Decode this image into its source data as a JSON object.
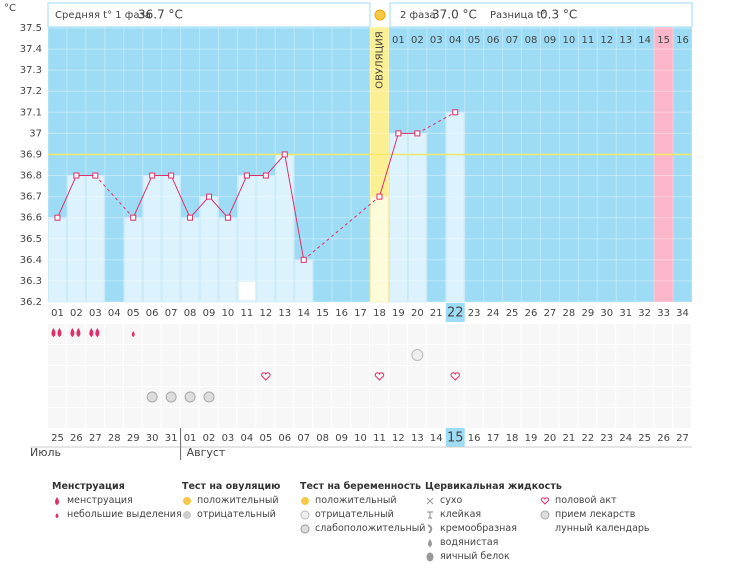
{
  "chart_data": {
    "type": "line",
    "y_label": "°C",
    "header": {
      "phase1_label": "Средняя t° 1 фаза",
      "phase1_value": "36.7 °C",
      "phase2_label": "2 фаза",
      "phase2_value": "37.0 °C",
      "diff_label": "Разница t°",
      "diff_value": "0.3 °C"
    },
    "ovulation_label": "ОВУЛЯЦИЯ",
    "categories": [
      "01",
      "02",
      "03",
      "04",
      "05",
      "06",
      "07",
      "08",
      "09",
      "10",
      "11",
      "12",
      "13",
      "14",
      "15",
      "16",
      "17",
      "18",
      "19",
      "20",
      "21",
      "22",
      "23",
      "24",
      "25",
      "26",
      "27",
      "28",
      "29",
      "30",
      "31",
      "32",
      "33",
      "34"
    ],
    "phase2_days": [
      null,
      null,
      null,
      null,
      null,
      null,
      null,
      null,
      null,
      null,
      null,
      null,
      null,
      null,
      null,
      null,
      null,
      null,
      "01",
      "02",
      "03",
      "04",
      "05",
      "06",
      "07",
      "08",
      "09",
      "10",
      "11",
      "12",
      "13",
      "14",
      "15",
      "16"
    ],
    "dates": [
      "25",
      "26",
      "27",
      "28",
      "29",
      "30",
      "31",
      "01",
      "02",
      "03",
      "04",
      "05",
      "06",
      "07",
      "08",
      "09",
      "10",
      "11",
      "12",
      "13",
      "14",
      "15",
      "16",
      "17",
      "18",
      "19",
      "20",
      "21",
      "22",
      "23",
      "24",
      "25",
      "26",
      "27"
    ],
    "months": [
      {
        "label": "Июль",
        "start": 0
      },
      {
        "label": "Август",
        "start": 7
      }
    ],
    "weekends": [
      2,
      3,
      9,
      10,
      16,
      17,
      23,
      24,
      30,
      31
    ],
    "weekend_color": "#d9003d",
    "series": [
      {
        "name": "Температура",
        "color": "#e0306a",
        "values": [
          36.6,
          36.8,
          36.8,
          null,
          36.6,
          36.8,
          36.8,
          36.6,
          36.7,
          36.6,
          36.8,
          36.8,
          36.9,
          36.4,
          null,
          null,
          null,
          36.7,
          37.0,
          37.0,
          null,
          37.1,
          null,
          null,
          null,
          null,
          null,
          null,
          null,
          null,
          null,
          null,
          null,
          null
        ]
      }
    ],
    "coverline": 36.9,
    "ylim": [
      36.2,
      37.5
    ],
    "yticks": [
      36.2,
      36.3,
      36.4,
      36.5,
      36.6,
      36.7,
      36.8,
      36.9,
      37,
      37.1,
      37.2,
      37.3,
      37.4,
      37.5
    ],
    "ovulation_day": 17,
    "today": 21,
    "period_day": 32,
    "menstruation_days": [
      0,
      1,
      2
    ],
    "spotting_days": [
      4
    ],
    "pregnancy_negative_days": [
      19
    ],
    "intercourse_days": [
      11,
      17,
      21
    ],
    "medication_days": [
      5,
      6,
      7,
      8
    ],
    "moon_days": [
      10
    ],
    "legend": {
      "menstruation": {
        "title": "Менструация",
        "items": [
          "менструация",
          "небольшие выделения"
        ]
      },
      "ovulation_test": {
        "title": "Тест на овуляцию",
        "items": [
          "положительный",
          "отрицательный"
        ]
      },
      "pregnancy_test": {
        "title": "Тест на беременность",
        "items": [
          "положительный",
          "отрицательный",
          "слабоположительный"
        ]
      },
      "cervical": {
        "title": "Цервикальная жидкость",
        "items": [
          "сухо",
          "клейкая",
          "кремообразная",
          "водянистая",
          "яичный белок"
        ]
      },
      "other": {
        "items": [
          "половой акт",
          "прием лекарств",
          "лунный календарь"
        ]
      }
    }
  }
}
